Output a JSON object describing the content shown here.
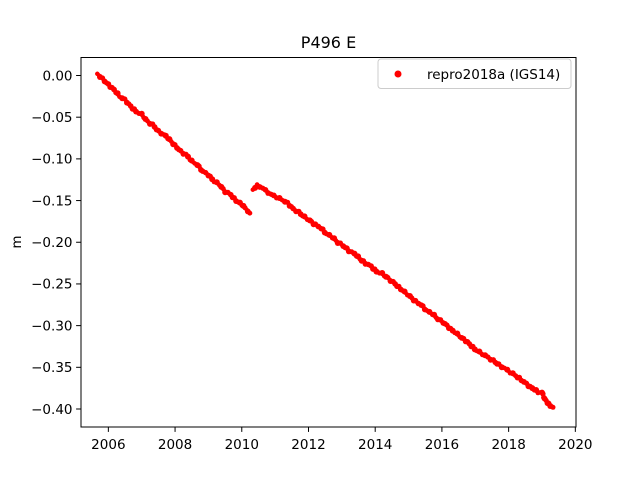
{
  "figure": {
    "title": "P496 E",
    "background": "#ffffff"
  },
  "chart_data": {
    "type": "scatter",
    "title": "P496 E",
    "xlabel": "",
    "ylabel": "m",
    "grid": false,
    "xlim": [
      2005.18,
      2020.02
    ],
    "ylim": [
      -0.4216,
      0.0216
    ],
    "xtick_values": [
      2006,
      2008,
      2010,
      2012,
      2014,
      2016,
      2018,
      2020
    ],
    "xtick_labels": [
      "2006",
      "2008",
      "2010",
      "2012",
      "2014",
      "2016",
      "2018",
      "2020"
    ],
    "ytick_values": [
      0.0,
      -0.05,
      -0.1,
      -0.15,
      -0.2,
      -0.25,
      -0.3,
      -0.35,
      -0.4
    ],
    "ytick_labels": [
      "0.00",
      "−0.05",
      "−0.10",
      "−0.15",
      "−0.20",
      "−0.25",
      "−0.30",
      "−0.35",
      "−0.40"
    ],
    "colors": {
      "series": "#ff0000",
      "text": "#000000",
      "axes": "#000000",
      "legend_border": "#cccccc",
      "background": "#ffffff"
    },
    "legend": {
      "position": "upper right",
      "entries": [
        {
          "label": "repro2018a (IGS14)",
          "color": "#ff0000",
          "marker": "dot"
        }
      ]
    },
    "series": [
      {
        "name": "repro2018a (IGS14)",
        "color": "#ff0000",
        "marker": ".",
        "segments": [
          [
            [
              2005.67,
              0.002
            ],
            [
              2005.75,
              -0.001
            ],
            [
              2005.83,
              -0.004
            ],
            [
              2006.0,
              -0.011
            ],
            [
              2006.17,
              -0.017
            ],
            [
              2006.33,
              -0.025
            ],
            [
              2006.5,
              -0.029
            ],
            [
              2006.67,
              -0.037
            ],
            [
              2006.83,
              -0.043
            ],
            [
              2007.0,
              -0.047
            ],
            [
              2007.17,
              -0.055
            ],
            [
              2007.33,
              -0.059
            ],
            [
              2007.5,
              -0.067
            ],
            [
              2007.67,
              -0.071
            ],
            [
              2007.83,
              -0.077
            ],
            [
              2008.0,
              -0.084
            ],
            [
              2008.17,
              -0.091
            ],
            [
              2008.33,
              -0.095
            ],
            [
              2008.5,
              -0.103
            ],
            [
              2008.67,
              -0.107
            ],
            [
              2008.83,
              -0.115
            ],
            [
              2009.0,
              -0.119
            ],
            [
              2009.17,
              -0.127
            ],
            [
              2009.33,
              -0.131
            ],
            [
              2009.5,
              -0.139
            ],
            [
              2009.67,
              -0.143
            ],
            [
              2009.83,
              -0.15
            ],
            [
              2010.0,
              -0.155
            ],
            [
              2010.1,
              -0.159
            ],
            [
              2010.18,
              -0.162
            ],
            [
              2010.24,
              -0.165
            ]
          ],
          [
            [
              2010.33,
              -0.137
            ],
            [
              2010.4,
              -0.134
            ],
            [
              2010.46,
              -0.132
            ],
            [
              2010.54,
              -0.133
            ],
            [
              2010.63,
              -0.135
            ],
            [
              2010.71,
              -0.138
            ],
            [
              2010.79,
              -0.14
            ],
            [
              2010.88,
              -0.143
            ],
            [
              2010.96,
              -0.144
            ],
            [
              2011.04,
              -0.146
            ],
            [
              2011.13,
              -0.148
            ],
            [
              2011.21,
              -0.149
            ],
            [
              2011.38,
              -0.153
            ],
            [
              2011.54,
              -0.16
            ],
            [
              2011.71,
              -0.164
            ],
            [
              2011.88,
              -0.17
            ],
            [
              2012.04,
              -0.174
            ],
            [
              2012.21,
              -0.179
            ],
            [
              2012.38,
              -0.183
            ],
            [
              2012.54,
              -0.19
            ],
            [
              2012.71,
              -0.194
            ],
            [
              2012.88,
              -0.2
            ],
            [
              2013.04,
              -0.204
            ],
            [
              2013.21,
              -0.21
            ],
            [
              2013.38,
              -0.214
            ],
            [
              2013.54,
              -0.22
            ],
            [
              2013.71,
              -0.225
            ],
            [
              2013.88,
              -0.229
            ],
            [
              2014.04,
              -0.235
            ],
            [
              2014.21,
              -0.238
            ],
            [
              2014.38,
              -0.243
            ],
            [
              2014.54,
              -0.248
            ],
            [
              2014.71,
              -0.254
            ],
            [
              2014.88,
              -0.26
            ],
            [
              2015.04,
              -0.265
            ],
            [
              2015.21,
              -0.271
            ],
            [
              2015.38,
              -0.275
            ],
            [
              2015.54,
              -0.282
            ],
            [
              2015.71,
              -0.286
            ],
            [
              2015.88,
              -0.292
            ],
            [
              2016.04,
              -0.296
            ],
            [
              2016.21,
              -0.302
            ],
            [
              2016.38,
              -0.308
            ],
            [
              2016.54,
              -0.313
            ],
            [
              2016.71,
              -0.318
            ],
            [
              2016.88,
              -0.324
            ],
            [
              2017.04,
              -0.33
            ],
            [
              2017.21,
              -0.334
            ],
            [
              2017.38,
              -0.338
            ],
            [
              2017.54,
              -0.342
            ],
            [
              2017.71,
              -0.347
            ],
            [
              2017.88,
              -0.351
            ],
            [
              2018.04,
              -0.356
            ],
            [
              2018.21,
              -0.36
            ],
            [
              2018.38,
              -0.365
            ],
            [
              2018.54,
              -0.37
            ],
            [
              2018.71,
              -0.375
            ],
            [
              2018.88,
              -0.38
            ],
            [
              2019.0,
              -0.38
            ],
            [
              2019.08,
              -0.388
            ],
            [
              2019.17,
              -0.392
            ],
            [
              2019.25,
              -0.396
            ],
            [
              2019.33,
              -0.398
            ]
          ]
        ]
      }
    ]
  }
}
